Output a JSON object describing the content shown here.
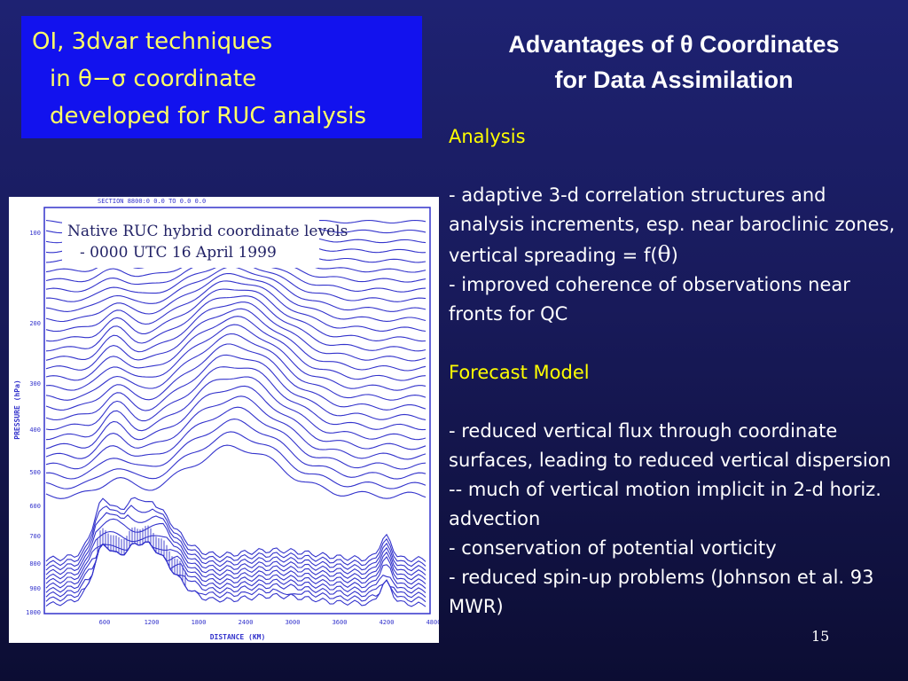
{
  "title_box": {
    "line1": "OI, 3dvar techniques",
    "line2": "in θ−σ coordinate",
    "line3": "developed for RUC analysis"
  },
  "slide_title": {
    "line1": "Advantages of θ Coordinates",
    "line2": "for Data Assimilation"
  },
  "analysis": {
    "heading": "Analysis",
    "bullet1_part1": "- adaptive 3-d correlation structures and analysis increments, esp. near baroclinic zones, vertical spreading = f(",
    "bullet1_theta": "θ",
    "bullet1_part2": ")",
    "bullet2": "- improved coherence of observations near fronts for QC"
  },
  "forecast_model": {
    "heading": "Forecast Model",
    "bullet1": "- reduced vertical flux through coordinate surfaces, leading to reduced vertical dispersion -- much of vertical motion implicit in 2-d horiz. advection",
    "bullet2": "- conservation of potential vorticity",
    "bullet3": "- reduced spin-up problems (Johnson et al. 93 MWR)"
  },
  "page_number": "15",
  "figure": {
    "header": "SECTION 8800:0 0.0 TO 0.0 0.0",
    "annotation_line1": "Native RUC hybrid  coordinate levels",
    "annotation_line2": "- 0000 UTC 16 April 1999",
    "y_axis_label": "PRESSURE (hPa)",
    "x_axis_label": "DISTANCE (KM)",
    "y_ticks": [
      "100",
      "200",
      "300",
      "400",
      "500",
      "600",
      "700",
      "800",
      "900",
      "1000"
    ],
    "x_ticks": [
      "600",
      "1200",
      "1800",
      "2400",
      "3000",
      "3600",
      "4200",
      "4800"
    ],
    "line_color": "#3333cc"
  },
  "colors": {
    "background": "#1a1d60",
    "title_box_bg": "#1212ee",
    "title_box_text": "#ffff66",
    "heading_text": "#ffff00",
    "body_text": "#ffffff"
  }
}
